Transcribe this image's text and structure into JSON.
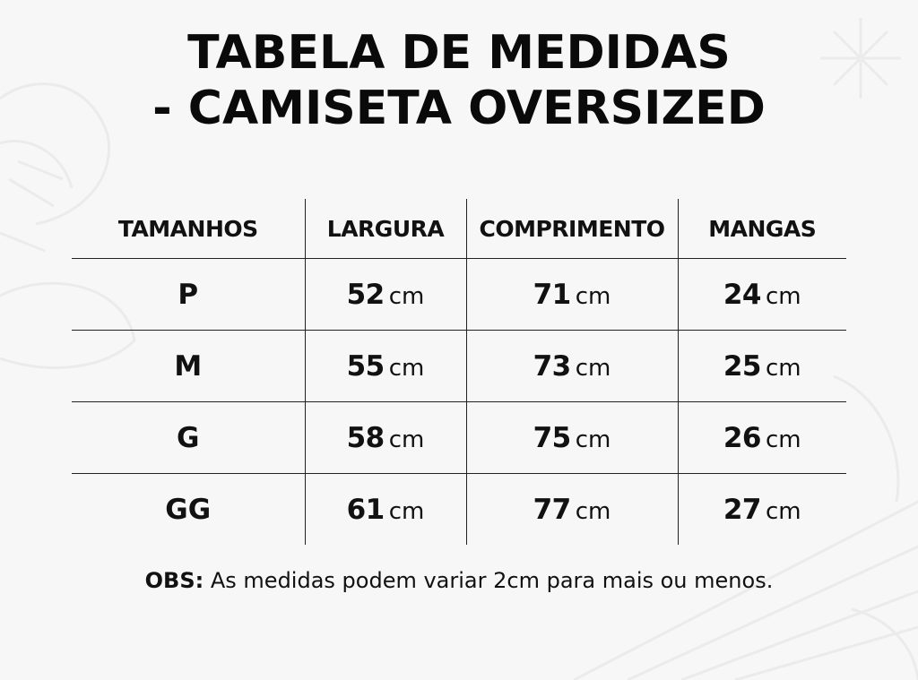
{
  "title": {
    "line1": "TABELA DE MEDIDAS",
    "line2": "- CAMISETA OVERSIZED"
  },
  "table": {
    "headers": [
      "TAMANHOS",
      "LARGURA",
      "COMPRIMENTO",
      "MANGAS"
    ],
    "unit": "cm",
    "rows": [
      {
        "size": "P",
        "largura": "52",
        "comprimento": "71",
        "mangas": "24"
      },
      {
        "size": "M",
        "largura": "55",
        "comprimento": "73",
        "mangas": "25"
      },
      {
        "size": "G",
        "largura": "58",
        "comprimento": "75",
        "mangas": "26"
      },
      {
        "size": "GG",
        "largura": "61",
        "comprimento": "77",
        "mangas": "27"
      }
    ]
  },
  "note": {
    "label": "OBS:",
    "text": "As medidas podem variar 2cm para mais ou menos."
  },
  "colors": {
    "background": "#f7f7f7",
    "text": "#111111",
    "rule": "#222222"
  }
}
